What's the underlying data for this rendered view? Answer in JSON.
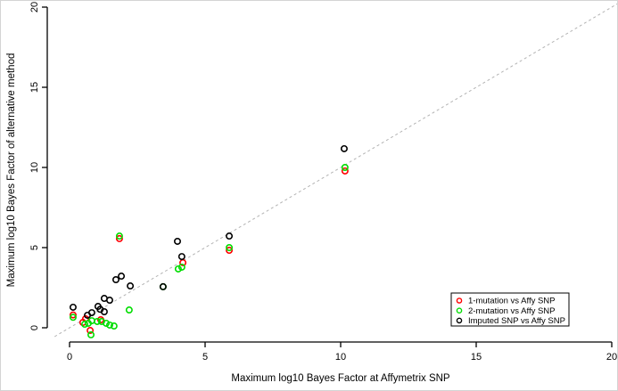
{
  "chart_data": {
    "type": "scatter",
    "title": "",
    "xlabel": "Maximum log10 Bayes Factor at Affymetrix SNP",
    "ylabel": "Maximum log10 Bayes Factor of alternative method",
    "xlim": [
      0,
      20
    ],
    "ylim": [
      0,
      20
    ],
    "xticks": [
      0,
      5,
      10,
      15,
      20
    ],
    "yticks": [
      0,
      5,
      10,
      15,
      20
    ],
    "grid": false,
    "point_style": "open-circle",
    "identity_line": {
      "style": "dashed",
      "color": "#b3b3b3",
      "from": -0.55,
      "to": 20.3
    },
    "legend": {
      "position": "right-bottom",
      "border_color": "#000000",
      "entries": [
        {
          "label": "1-mutation vs Affy SNP",
          "color": "#ff0000"
        },
        {
          "label": "2-mutation vs Affy SNP",
          "color": "#00dd00"
        },
        {
          "label": "Imputed SNP vs Affy SNP",
          "color": "#000000"
        }
      ]
    },
    "series": [
      {
        "name": "1-mutation vs Affy SNP",
        "color": "#ff0000",
        "points": [
          [
            0.13,
            0.8
          ],
          [
            0.49,
            0.33
          ],
          [
            0.59,
            0.56
          ],
          [
            0.76,
            -0.17
          ],
          [
            1.15,
            0.5
          ],
          [
            1.84,
            5.56
          ],
          [
            4.18,
            4.06
          ],
          [
            5.89,
            4.83
          ],
          [
            10.16,
            9.78
          ]
        ]
      },
      {
        "name": "2-mutation vs Affy SNP",
        "color": "#00dd00",
        "points": [
          [
            0.13,
            0.65
          ],
          [
            0.56,
            0.22
          ],
          [
            0.69,
            0.28
          ],
          [
            0.79,
            -0.44
          ],
          [
            0.82,
            0.44
          ],
          [
            1.02,
            0.39
          ],
          [
            1.18,
            0.39
          ],
          [
            1.35,
            0.28
          ],
          [
            1.48,
            0.17
          ],
          [
            1.64,
            0.11
          ],
          [
            1.84,
            5.72
          ],
          [
            2.2,
            1.11
          ],
          [
            3.45,
            2.56
          ],
          [
            4.01,
            3.67
          ],
          [
            4.14,
            3.78
          ],
          [
            5.89,
            5.0
          ],
          [
            10.16,
            10.0
          ]
        ]
      },
      {
        "name": "Imputed SNP vs Affy SNP",
        "color": "#000000",
        "points": [
          [
            0.13,
            1.28
          ],
          [
            0.66,
            0.78
          ],
          [
            0.82,
            0.94
          ],
          [
            1.05,
            1.33
          ],
          [
            1.13,
            1.15
          ],
          [
            1.28,
            1.0
          ],
          [
            1.28,
            1.83
          ],
          [
            1.48,
            1.72
          ],
          [
            1.71,
            3.0
          ],
          [
            1.91,
            3.22
          ],
          [
            2.24,
            2.61
          ],
          [
            3.45,
            2.56
          ],
          [
            3.98,
            5.39
          ],
          [
            4.14,
            4.44
          ],
          [
            5.89,
            5.72
          ],
          [
            10.13,
            11.17
          ]
        ]
      }
    ]
  }
}
